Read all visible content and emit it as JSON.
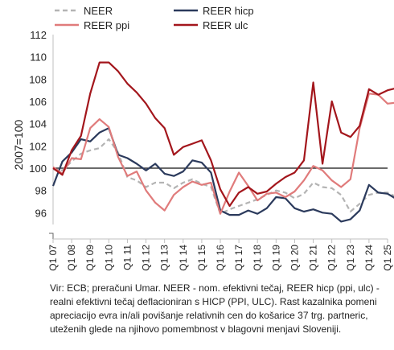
{
  "chart_data": {
    "type": "line",
    "ylabel": "2007=100",
    "ylim": [
      94,
      112
    ],
    "yticks": [
      96,
      98,
      100,
      102,
      104,
      106,
      108,
      110,
      112
    ],
    "reference_line": 100,
    "x_start": "Q1 07",
    "x_end": "Q1 25",
    "categories": [
      "Q1 07",
      "Q1 08",
      "Q1 09",
      "Q1 10",
      "Q1 11",
      "Q1 12",
      "Q1 13",
      "Q1 14",
      "Q1 15",
      "Q1 16",
      "Q1 17",
      "Q1 18",
      "Q1 19",
      "Q1 20",
      "Q1 21",
      "Q1 22",
      "Q1 23",
      "Q1 24",
      "Q1 25"
    ],
    "legend_position": "top",
    "series": [
      {
        "name": "NEER",
        "color": "#b4b4b4",
        "dash": true,
        "points": [
          [
            0,
            99.9
          ],
          [
            0.5,
            99.8
          ],
          [
            1,
            100.6
          ],
          [
            1.5,
            101.3
          ],
          [
            2,
            101.6
          ],
          [
            2.5,
            101.8
          ],
          [
            3,
            102.6
          ],
          [
            3.5,
            101.4
          ],
          [
            4,
            99.2
          ],
          [
            4.5,
            98.9
          ],
          [
            5,
            98.3
          ],
          [
            5.5,
            98.7
          ],
          [
            6,
            98.7
          ],
          [
            6.5,
            98.2
          ],
          [
            7,
            98.7
          ],
          [
            7.5,
            99.0
          ],
          [
            8,
            98.6
          ],
          [
            8.5,
            98.3
          ],
          [
            9,
            95.9
          ],
          [
            9.5,
            96.3
          ],
          [
            10,
            96.6
          ],
          [
            10.5,
            96.9
          ],
          [
            11,
            97.2
          ],
          [
            11.5,
            97.6
          ],
          [
            12,
            98.0
          ],
          [
            12.5,
            97.8
          ],
          [
            13,
            97.3
          ],
          [
            13.5,
            97.7
          ],
          [
            14,
            98.7
          ],
          [
            14.5,
            98.3
          ],
          [
            15,
            98.2
          ],
          [
            15.5,
            97.6
          ],
          [
            16,
            96.1
          ],
          [
            16.5,
            96.8
          ],
          [
            17,
            97.6
          ],
          [
            17.5,
            97.8
          ],
          [
            18,
            97.8
          ],
          [
            18.5,
            97.4
          ],
          [
            19,
            97.2
          ]
        ]
      },
      {
        "name": "REER hicp",
        "color": "#2b3a5c",
        "dash": false,
        "points": [
          [
            0,
            98.4
          ],
          [
            0.5,
            100.6
          ],
          [
            1,
            101.4
          ],
          [
            1.5,
            102.6
          ],
          [
            2,
            102.4
          ],
          [
            2.5,
            103.2
          ],
          [
            3,
            103.6
          ],
          [
            3.5,
            101.2
          ],
          [
            4,
            100.9
          ],
          [
            4.5,
            100.4
          ],
          [
            5,
            99.8
          ],
          [
            5.5,
            100.4
          ],
          [
            6,
            99.5
          ],
          [
            6.5,
            99.3
          ],
          [
            7,
            99.7
          ],
          [
            7.5,
            100.7
          ],
          [
            8,
            100.5
          ],
          [
            8.5,
            99.6
          ],
          [
            9,
            96.2
          ],
          [
            9.5,
            95.8
          ],
          [
            10,
            95.8
          ],
          [
            10.5,
            96.2
          ],
          [
            11,
            95.9
          ],
          [
            11.5,
            96.4
          ],
          [
            12,
            97.4
          ],
          [
            12.5,
            97.3
          ],
          [
            13,
            96.4
          ],
          [
            13.5,
            96.1
          ],
          [
            14,
            96.3
          ],
          [
            14.5,
            96.0
          ],
          [
            15,
            95.9
          ],
          [
            15.5,
            95.2
          ],
          [
            16,
            95.4
          ],
          [
            16.5,
            96.2
          ],
          [
            17,
            98.5
          ],
          [
            17.5,
            97.8
          ],
          [
            18,
            97.7
          ],
          [
            18.5,
            97.2
          ],
          [
            19,
            96.8
          ]
        ]
      },
      {
        "name": "REER ppi",
        "color": "#e07b7b",
        "dash": false,
        "points": [
          [
            0,
            100.1
          ],
          [
            0.5,
            99.5
          ],
          [
            1,
            100.9
          ],
          [
            1.5,
            100.8
          ],
          [
            2,
            103.6
          ],
          [
            2.5,
            104.4
          ],
          [
            3,
            103.7
          ],
          [
            3.5,
            101.0
          ],
          [
            4,
            99.3
          ],
          [
            4.5,
            99.7
          ],
          [
            5,
            98.0
          ],
          [
            5.5,
            96.9
          ],
          [
            6,
            96.2
          ],
          [
            6.5,
            97.6
          ],
          [
            7,
            98.3
          ],
          [
            7.5,
            98.8
          ],
          [
            8,
            98.5
          ],
          [
            8.5,
            98.7
          ],
          [
            9,
            95.9
          ],
          [
            9.5,
            97.9
          ],
          [
            10,
            99.6
          ],
          [
            10.5,
            98.4
          ],
          [
            11,
            97.1
          ],
          [
            11.5,
            97.7
          ],
          [
            12,
            97.8
          ],
          [
            12.5,
            97.4
          ],
          [
            13,
            97.9
          ],
          [
            13.5,
            98.9
          ],
          [
            14,
            100.2
          ],
          [
            14.5,
            99.8
          ],
          [
            15,
            98.9
          ],
          [
            15.5,
            98.3
          ],
          [
            16,
            99.0
          ],
          [
            16.5,
            103.6
          ],
          [
            17,
            106.7
          ],
          [
            17.5,
            106.6
          ],
          [
            18,
            105.8
          ],
          [
            18.5,
            105.9
          ],
          [
            19,
            104.8
          ]
        ]
      },
      {
        "name": "REER ulc",
        "color": "#a3161c",
        "dash": false,
        "points": [
          [
            0,
            100.0
          ],
          [
            0.5,
            99.4
          ],
          [
            1,
            101.6
          ],
          [
            1.5,
            102.9
          ],
          [
            2,
            106.7
          ],
          [
            2.5,
            109.5
          ],
          [
            3,
            109.5
          ],
          [
            3.5,
            108.7
          ],
          [
            4,
            107.6
          ],
          [
            4.5,
            106.8
          ],
          [
            5,
            105.8
          ],
          [
            5.5,
            104.5
          ],
          [
            6,
            103.6
          ],
          [
            6.5,
            101.2
          ],
          [
            7,
            101.9
          ],
          [
            7.5,
            102.2
          ],
          [
            8,
            102.5
          ],
          [
            8.5,
            100.7
          ],
          [
            9,
            98.1
          ],
          [
            9.5,
            96.6
          ],
          [
            10,
            97.8
          ],
          [
            10.5,
            98.3
          ],
          [
            11,
            97.7
          ],
          [
            11.5,
            97.9
          ],
          [
            12,
            98.6
          ],
          [
            12.5,
            99.2
          ],
          [
            13,
            99.6
          ],
          [
            13.5,
            100.7
          ],
          [
            14,
            107.7
          ],
          [
            14.5,
            100.4
          ],
          [
            15,
            106.0
          ],
          [
            15.5,
            103.2
          ],
          [
            16,
            102.8
          ],
          [
            16.5,
            103.8
          ],
          [
            17,
            107.1
          ],
          [
            17.5,
            106.6
          ],
          [
            18,
            107.0
          ],
          [
            18.5,
            107.2
          ],
          [
            19,
            106.0
          ]
        ]
      }
    ]
  },
  "source_note": "Vir: ECB; preračuni Umar. NEER - nom. efektivni tečaj, REER hicp (ppi, ulc) - realni efektivni tečaj deflacioniran s HICP (PPI, ULC). Rast kazalnika pomeni apreciacijo evra in/ali povišanje relativnih cen do košarice 37 trg. partneric, uteženih glede na njihovo pomembnost v blagovni menjavi Sloveniji."
}
